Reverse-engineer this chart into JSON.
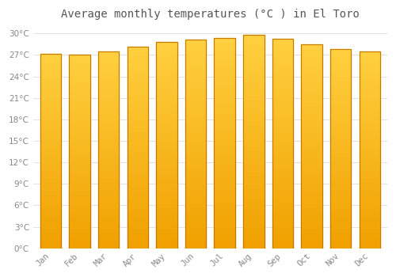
{
  "title": "Average monthly temperatures (°C ) in El Toro",
  "months": [
    "Jan",
    "Feb",
    "Mar",
    "Apr",
    "May",
    "Jun",
    "Jul",
    "Aug",
    "Sep",
    "Oct",
    "Nov",
    "Dec"
  ],
  "temperatures": [
    27.2,
    27.0,
    27.5,
    28.2,
    28.8,
    29.2,
    29.4,
    29.8,
    29.3,
    28.5,
    27.8,
    27.5
  ],
  "bar_color_top": "#FFD040",
  "bar_color_bottom": "#F0A000",
  "bar_color_edge": "#C87800",
  "background_color": "#FFFFFF",
  "plot_bg_color": "#FFFFFF",
  "grid_color": "#DDDDDD",
  "ylim": [
    0,
    31
  ],
  "ytick_step": 3,
  "title_fontsize": 10,
  "tick_fontsize": 7.5,
  "tick_color": "#888888",
  "title_color": "#555555"
}
